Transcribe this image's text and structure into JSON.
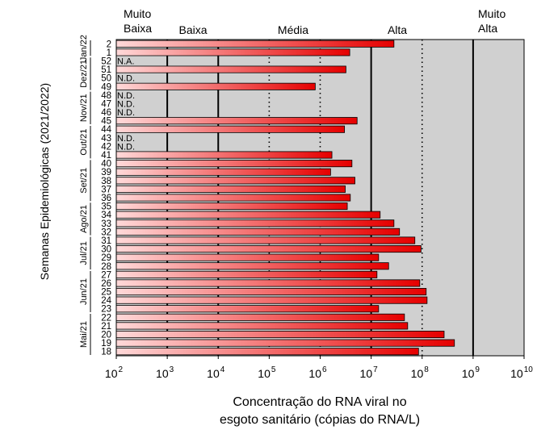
{
  "chart_data": {
    "type": "bar",
    "orientation": "horizontal",
    "x_scale": "log",
    "xlim": [
      100,
      10000000000
    ],
    "x_ticks": [
      {
        "value": 100,
        "label": "10",
        "exp": "2"
      },
      {
        "value": 1000,
        "label": "10",
        "exp": "3"
      },
      {
        "value": 10000,
        "label": "10",
        "exp": "4"
      },
      {
        "value": 100000,
        "label": "10",
        "exp": "5"
      },
      {
        "value": 1000000,
        "label": "10",
        "exp": "6"
      },
      {
        "value": 10000000,
        "label": "10",
        "exp": "7"
      },
      {
        "value": 100000000,
        "label": "10",
        "exp": "8"
      },
      {
        "value": 1000000000,
        "label": "10",
        "exp": "9"
      },
      {
        "value": 10000000000,
        "label": "10",
        "exp": "10"
      }
    ],
    "xlabel_lines": [
      "Concentração do RNA viral no",
      "esgoto sanitário (cópias do RNA/L)"
    ],
    "ylabel": "Semanas Epidemiológicas (2021/2022)",
    "zones": [
      {
        "lines": [
          "Muito",
          "Baixa"
        ],
        "from": 100,
        "to": 1000,
        "shaded": true
      },
      {
        "lines": [
          "Baixa"
        ],
        "from": 1000,
        "to": 10000,
        "shaded": true
      },
      {
        "lines": [
          "Média"
        ],
        "from": 10000,
        "to": 10000000,
        "shaded": true
      },
      {
        "lines": [
          "Alta"
        ],
        "from": 10000000,
        "to": 1000000000,
        "shaded": true
      },
      {
        "lines": [
          "Muito",
          "Alta"
        ],
        "from": 1000000000,
        "to": 10000000000,
        "shaded": true
      }
    ],
    "solid_lines": [
      1000,
      10000,
      10000000,
      1000000000
    ],
    "dotted_lines": [
      100000,
      1000000,
      100000000
    ],
    "months": [
      {
        "label": "Jan/22",
        "weeks": [
          1,
          2
        ]
      },
      {
        "label": "Dez/21",
        "weeks": [
          49,
          52
        ]
      },
      {
        "label": "Nov/21",
        "weeks": [
          45,
          48
        ]
      },
      {
        "label": "Out/21",
        "weeks": [
          41,
          44
        ]
      },
      {
        "label": "Set/21",
        "weeks": [
          36,
          40
        ]
      },
      {
        "label": "Ago/21",
        "weeks": [
          32,
          35
        ]
      },
      {
        "label": "Jul/21",
        "weeks": [
          28,
          31
        ]
      },
      {
        "label": "Jun/21",
        "weeks": [
          23,
          27
        ]
      },
      {
        "label": "Mai/21",
        "weeks": [
          18,
          22
        ]
      }
    ],
    "bars": [
      {
        "week": "2",
        "value": 28000000
      },
      {
        "week": "1",
        "value": 3800000
      },
      {
        "week": "52",
        "value": null,
        "note": "N.A."
      },
      {
        "week": "51",
        "value": 3200000
      },
      {
        "week": "50",
        "value": null,
        "note": "N.D."
      },
      {
        "week": "49",
        "value": 800000
      },
      {
        "week": "48",
        "value": null,
        "note": "N.D."
      },
      {
        "week": "47",
        "value": null,
        "note": "N.D."
      },
      {
        "week": "46",
        "value": null,
        "note": "N.D."
      },
      {
        "week": "45",
        "value": 5300000
      },
      {
        "week": "44",
        "value": 3000000
      },
      {
        "week": "43",
        "value": null,
        "note": "N.D."
      },
      {
        "week": "42",
        "value": null,
        "note": "N.D."
      },
      {
        "week": "41",
        "value": 1700000
      },
      {
        "week": "40",
        "value": 4200000
      },
      {
        "week": "39",
        "value": 1600000
      },
      {
        "week": "38",
        "value": 4800000
      },
      {
        "week": "37",
        "value": 3100000
      },
      {
        "week": "36",
        "value": 3900000
      },
      {
        "week": "35",
        "value": 3400000
      },
      {
        "week": "34",
        "value": 15000000
      },
      {
        "week": "33",
        "value": 28000000
      },
      {
        "week": "32",
        "value": 36000000
      },
      {
        "week": "31",
        "value": 72000000
      },
      {
        "week": "30",
        "value": 95000000
      },
      {
        "week": "29",
        "value": 14000000
      },
      {
        "week": "28",
        "value": 22000000
      },
      {
        "week": "27",
        "value": 13000000
      },
      {
        "week": "26",
        "value": 90000000
      },
      {
        "week": "25",
        "value": 120000000
      },
      {
        "week": "24",
        "value": 125000000
      },
      {
        "week": "23",
        "value": 14000000
      },
      {
        "week": "22",
        "value": 45000000
      },
      {
        "week": "21",
        "value": 52000000
      },
      {
        "week": "20",
        "value": 270000000
      },
      {
        "week": "19",
        "value": 430000000
      },
      {
        "week": "18",
        "value": 85000000
      }
    ],
    "colors": {
      "zone_fill": "#d0d0d0",
      "bar_start": "#ffd9d9",
      "bar_end": "#e60000",
      "bar_stroke": "#000000"
    }
  }
}
